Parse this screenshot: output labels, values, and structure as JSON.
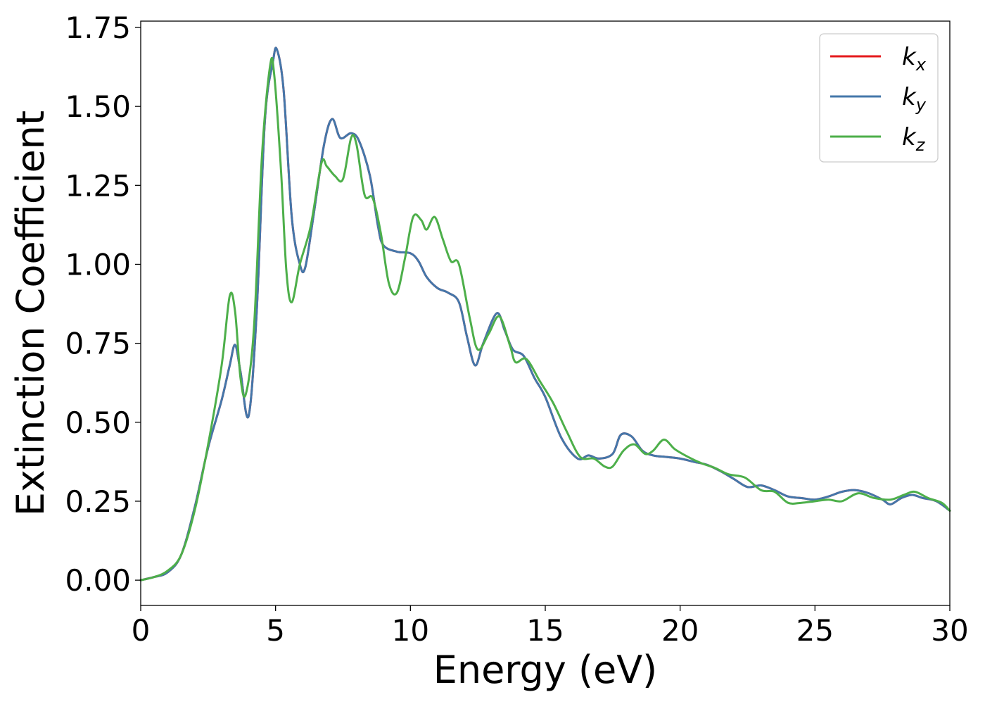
{
  "chart_data": {
    "type": "line",
    "title": "",
    "xlabel": "Energy (eV)",
    "ylabel": "Extinction Coefficient",
    "xlim": [
      0,
      30
    ],
    "ylim": [
      -0.08,
      1.77
    ],
    "xticks": [
      0,
      5,
      10,
      15,
      20,
      25,
      30
    ],
    "xtick_labels": [
      "0",
      "5",
      "10",
      "15",
      "20",
      "25",
      "30"
    ],
    "yticks": [
      0.0,
      0.25,
      0.5,
      0.75,
      1.0,
      1.25,
      1.5,
      1.75
    ],
    "ytick_labels": [
      "0.00",
      "0.25",
      "0.50",
      "0.75",
      "1.00",
      "1.25",
      "1.50",
      "1.75"
    ],
    "grid": false,
    "legend_position": "top-right",
    "series": [
      {
        "name": "k_x",
        "color": "#e41a1c",
        "points": [
          [
            0,
            0
          ],
          [
            0.5,
            0.01
          ],
          [
            1.0,
            0.025
          ],
          [
            1.5,
            0.08
          ],
          [
            2.0,
            0.23
          ],
          [
            2.5,
            0.42
          ],
          [
            3.0,
            0.57
          ],
          [
            3.3,
            0.68
          ],
          [
            3.5,
            0.745
          ],
          [
            3.7,
            0.66
          ],
          [
            4.0,
            0.52
          ],
          [
            4.3,
            0.85
          ],
          [
            4.6,
            1.45
          ],
          [
            4.9,
            1.64
          ],
          [
            5.05,
            1.68
          ],
          [
            5.3,
            1.55
          ],
          [
            5.6,
            1.15
          ],
          [
            5.9,
            1.0
          ],
          [
            6.1,
            0.99
          ],
          [
            6.4,
            1.15
          ],
          [
            6.8,
            1.38
          ],
          [
            7.1,
            1.46
          ],
          [
            7.4,
            1.4
          ],
          [
            7.8,
            1.415
          ],
          [
            8.1,
            1.39
          ],
          [
            8.5,
            1.28
          ],
          [
            8.8,
            1.12
          ],
          [
            9.0,
            1.06
          ],
          [
            9.5,
            1.04
          ],
          [
            10.0,
            1.035
          ],
          [
            10.3,
            1.01
          ],
          [
            10.6,
            0.96
          ],
          [
            11.0,
            0.925
          ],
          [
            11.4,
            0.91
          ],
          [
            11.8,
            0.88
          ],
          [
            12.1,
            0.77
          ],
          [
            12.4,
            0.68
          ],
          [
            12.7,
            0.75
          ],
          [
            13.2,
            0.845
          ],
          [
            13.5,
            0.79
          ],
          [
            13.8,
            0.73
          ],
          [
            14.2,
            0.71
          ],
          [
            14.6,
            0.64
          ],
          [
            15.0,
            0.58
          ],
          [
            15.6,
            0.45
          ],
          [
            16.2,
            0.385
          ],
          [
            16.6,
            0.395
          ],
          [
            17.0,
            0.385
          ],
          [
            17.5,
            0.4
          ],
          [
            17.8,
            0.46
          ],
          [
            18.2,
            0.455
          ],
          [
            18.6,
            0.41
          ],
          [
            19.0,
            0.395
          ],
          [
            19.5,
            0.39
          ],
          [
            20.0,
            0.385
          ],
          [
            20.5,
            0.375
          ],
          [
            21.0,
            0.365
          ],
          [
            21.5,
            0.345
          ],
          [
            22.0,
            0.32
          ],
          [
            22.5,
            0.295
          ],
          [
            23.0,
            0.3
          ],
          [
            23.5,
            0.285
          ],
          [
            24.0,
            0.265
          ],
          [
            24.5,
            0.26
          ],
          [
            25.0,
            0.255
          ],
          [
            25.5,
            0.265
          ],
          [
            26.0,
            0.28
          ],
          [
            26.5,
            0.285
          ],
          [
            27.0,
            0.275
          ],
          [
            27.5,
            0.255
          ],
          [
            27.8,
            0.24
          ],
          [
            28.2,
            0.26
          ],
          [
            28.6,
            0.27
          ],
          [
            29.0,
            0.26
          ],
          [
            29.5,
            0.25
          ],
          [
            30.0,
            0.22
          ]
        ]
      },
      {
        "name": "k_y",
        "color": "#4477aa",
        "points": [
          [
            0,
            0
          ],
          [
            0.5,
            0.01
          ],
          [
            1.0,
            0.025
          ],
          [
            1.5,
            0.08
          ],
          [
            2.0,
            0.23
          ],
          [
            2.5,
            0.42
          ],
          [
            3.0,
            0.57
          ],
          [
            3.3,
            0.68
          ],
          [
            3.5,
            0.745
          ],
          [
            3.7,
            0.66
          ],
          [
            4.0,
            0.52
          ],
          [
            4.3,
            0.85
          ],
          [
            4.6,
            1.45
          ],
          [
            4.9,
            1.64
          ],
          [
            5.05,
            1.68
          ],
          [
            5.3,
            1.55
          ],
          [
            5.6,
            1.15
          ],
          [
            5.9,
            1.0
          ],
          [
            6.1,
            0.99
          ],
          [
            6.4,
            1.15
          ],
          [
            6.8,
            1.38
          ],
          [
            7.1,
            1.46
          ],
          [
            7.4,
            1.4
          ],
          [
            7.8,
            1.415
          ],
          [
            8.1,
            1.39
          ],
          [
            8.5,
            1.28
          ],
          [
            8.8,
            1.12
          ],
          [
            9.0,
            1.06
          ],
          [
            9.5,
            1.04
          ],
          [
            10.0,
            1.035
          ],
          [
            10.3,
            1.01
          ],
          [
            10.6,
            0.96
          ],
          [
            11.0,
            0.925
          ],
          [
            11.4,
            0.91
          ],
          [
            11.8,
            0.88
          ],
          [
            12.1,
            0.77
          ],
          [
            12.4,
            0.68
          ],
          [
            12.7,
            0.75
          ],
          [
            13.2,
            0.845
          ],
          [
            13.5,
            0.79
          ],
          [
            13.8,
            0.73
          ],
          [
            14.2,
            0.71
          ],
          [
            14.6,
            0.64
          ],
          [
            15.0,
            0.58
          ],
          [
            15.6,
            0.45
          ],
          [
            16.2,
            0.385
          ],
          [
            16.6,
            0.395
          ],
          [
            17.0,
            0.385
          ],
          [
            17.5,
            0.4
          ],
          [
            17.8,
            0.46
          ],
          [
            18.2,
            0.455
          ],
          [
            18.6,
            0.41
          ],
          [
            19.0,
            0.395
          ],
          [
            19.5,
            0.39
          ],
          [
            20.0,
            0.385
          ],
          [
            20.5,
            0.375
          ],
          [
            21.0,
            0.365
          ],
          [
            21.5,
            0.345
          ],
          [
            22.0,
            0.32
          ],
          [
            22.5,
            0.295
          ],
          [
            23.0,
            0.3
          ],
          [
            23.5,
            0.285
          ],
          [
            24.0,
            0.265
          ],
          [
            24.5,
            0.26
          ],
          [
            25.0,
            0.255
          ],
          [
            25.5,
            0.265
          ],
          [
            26.0,
            0.28
          ],
          [
            26.5,
            0.285
          ],
          [
            27.0,
            0.275
          ],
          [
            27.5,
            0.255
          ],
          [
            27.8,
            0.24
          ],
          [
            28.2,
            0.26
          ],
          [
            28.6,
            0.27
          ],
          [
            29.0,
            0.26
          ],
          [
            29.5,
            0.25
          ],
          [
            30.0,
            0.22
          ]
        ]
      },
      {
        "name": "k_z",
        "color": "#4daf4a",
        "points": [
          [
            0,
            0
          ],
          [
            0.5,
            0.01
          ],
          [
            1.0,
            0.03
          ],
          [
            1.5,
            0.08
          ],
          [
            2.0,
            0.22
          ],
          [
            2.5,
            0.43
          ],
          [
            3.0,
            0.68
          ],
          [
            3.3,
            0.9
          ],
          [
            3.5,
            0.85
          ],
          [
            3.7,
            0.64
          ],
          [
            3.9,
            0.59
          ],
          [
            4.2,
            0.8
          ],
          [
            4.5,
            1.35
          ],
          [
            4.8,
            1.63
          ],
          [
            4.95,
            1.6
          ],
          [
            5.2,
            1.3
          ],
          [
            5.4,
            0.98
          ],
          [
            5.6,
            0.88
          ],
          [
            5.9,
            1.0
          ],
          [
            6.3,
            1.12
          ],
          [
            6.7,
            1.32
          ],
          [
            6.9,
            1.31
          ],
          [
            7.2,
            1.28
          ],
          [
            7.5,
            1.27
          ],
          [
            7.8,
            1.4
          ],
          [
            8.0,
            1.38
          ],
          [
            8.3,
            1.22
          ],
          [
            8.6,
            1.21
          ],
          [
            8.9,
            1.1
          ],
          [
            9.2,
            0.94
          ],
          [
            9.5,
            0.91
          ],
          [
            9.8,
            1.02
          ],
          [
            10.1,
            1.15
          ],
          [
            10.4,
            1.14
          ],
          [
            10.6,
            1.11
          ],
          [
            10.9,
            1.15
          ],
          [
            11.2,
            1.08
          ],
          [
            11.5,
            1.01
          ],
          [
            11.8,
            1.0
          ],
          [
            12.2,
            0.83
          ],
          [
            12.5,
            0.73
          ],
          [
            12.9,
            0.78
          ],
          [
            13.3,
            0.835
          ],
          [
            13.7,
            0.74
          ],
          [
            13.9,
            0.69
          ],
          [
            14.3,
            0.7
          ],
          [
            14.8,
            0.63
          ],
          [
            15.3,
            0.56
          ],
          [
            15.8,
            0.47
          ],
          [
            16.3,
            0.39
          ],
          [
            16.8,
            0.385
          ],
          [
            17.2,
            0.36
          ],
          [
            17.5,
            0.36
          ],
          [
            17.9,
            0.41
          ],
          [
            18.3,
            0.43
          ],
          [
            18.7,
            0.4
          ],
          [
            19.0,
            0.41
          ],
          [
            19.4,
            0.445
          ],
          [
            19.8,
            0.415
          ],
          [
            20.3,
            0.39
          ],
          [
            20.8,
            0.37
          ],
          [
            21.3,
            0.355
          ],
          [
            21.8,
            0.335
          ],
          [
            22.4,
            0.325
          ],
          [
            23.0,
            0.285
          ],
          [
            23.5,
            0.28
          ],
          [
            24.0,
            0.245
          ],
          [
            24.5,
            0.245
          ],
          [
            25.0,
            0.25
          ],
          [
            25.5,
            0.255
          ],
          [
            26.0,
            0.25
          ],
          [
            26.6,
            0.275
          ],
          [
            27.2,
            0.26
          ],
          [
            27.8,
            0.255
          ],
          [
            28.3,
            0.27
          ],
          [
            28.7,
            0.28
          ],
          [
            29.2,
            0.26
          ],
          [
            29.7,
            0.245
          ],
          [
            30.0,
            0.22
          ]
        ]
      }
    ]
  }
}
